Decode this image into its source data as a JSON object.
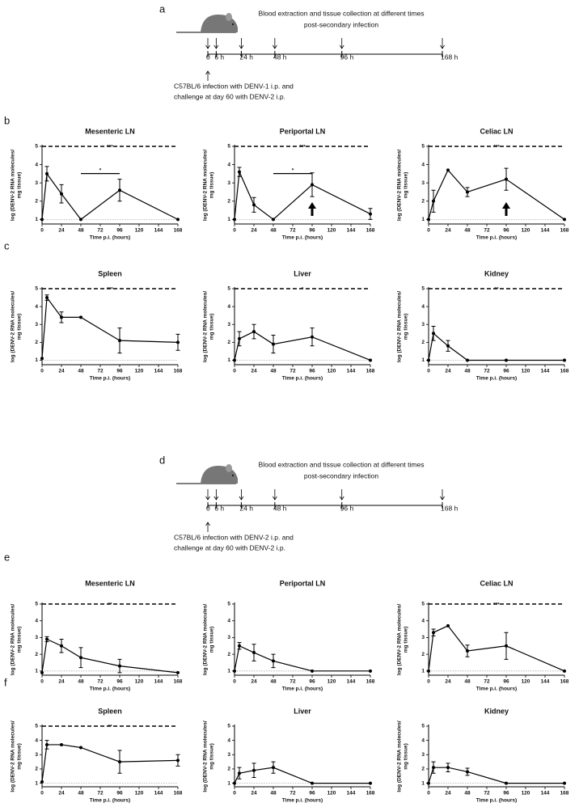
{
  "panels": [
    "a",
    "b",
    "c",
    "d",
    "e",
    "f"
  ],
  "timelines": [
    {
      "top_text": [
        "Blood extraction and tissue collection at different times",
        "post-secondary infection"
      ],
      "bottom_text": [
        "C57BL/6 infection with DENV-1 i.p. and",
        "challenge at day 60 with DENV-2 i.p."
      ],
      "ticks": [
        {
          "value": 0,
          "label": "0"
        },
        {
          "value": 6,
          "label": "6 h"
        },
        {
          "value": 24,
          "label": "24 h"
        },
        {
          "value": 48,
          "label": "48 h"
        },
        {
          "value": 96,
          "label": "96 h"
        },
        {
          "value": 168,
          "label": "168 h"
        }
      ]
    },
    {
      "top_text": [
        "Blood extraction and tissue collection at different times",
        "post-secondary infection"
      ],
      "bottom_text": [
        "C57BL/6 infection with DENV-2 i.p. and",
        "challenge at day 60 with DENV-2 i.p."
      ],
      "ticks": [
        {
          "value": 0,
          "label": "0"
        },
        {
          "value": 6,
          "label": "6 h"
        },
        {
          "value": 24,
          "label": "24 h"
        },
        {
          "value": 48,
          "label": "48 h"
        },
        {
          "value": 96,
          "label": "96 h"
        },
        {
          "value": 168,
          "label": "168 h"
        }
      ]
    }
  ],
  "chart_data": [
    {
      "type": "line",
      "title": "Mesenteric LN",
      "xlabel": "Time p.i. (hours)",
      "ylabel": [
        "log (DENV-2 RNA molecules/",
        "mg tissue)"
      ],
      "x": [
        0,
        6,
        24,
        48,
        96,
        168
      ],
      "values": [
        1,
        3.5,
        2.4,
        1,
        2.6,
        1
      ],
      "errors": [
        null,
        0.4,
        0.5,
        null,
        0.6,
        null
      ],
      "xlim": [
        0,
        168
      ],
      "xticks": [
        0,
        24,
        48,
        72,
        96,
        120,
        144,
        168
      ],
      "ylim": [
        0.75,
        5
      ],
      "yticks": [
        1,
        2,
        3,
        4,
        5
      ],
      "baseline": 1,
      "significance": "***",
      "bracket_x": [
        48,
        96
      ],
      "bracket_label": "*",
      "color": "#000000"
    },
    {
      "type": "line",
      "title": "Periportal LN",
      "xlabel": "Time p.i. (hours)",
      "ylabel": [
        "log (DENV-2 RNA molecules/",
        "mg tissue)"
      ],
      "x": [
        0,
        6,
        24,
        48,
        96,
        168
      ],
      "values": [
        1,
        3.6,
        1.8,
        1,
        2.9,
        1.3
      ],
      "errors": [
        null,
        0.25,
        0.4,
        null,
        0.65,
        0.3
      ],
      "xlim": [
        0,
        168
      ],
      "xticks": [
        0,
        24,
        48,
        72,
        96,
        120,
        144,
        168
      ],
      "ylim": [
        0.75,
        5
      ],
      "yticks": [
        1,
        2,
        3,
        4,
        5
      ],
      "baseline": 1,
      "significance": "***",
      "bracket_x": [
        48,
        96
      ],
      "bracket_label": "*",
      "arrow_x": 96,
      "color": "#000000"
    },
    {
      "type": "line",
      "title": "Celiac LN",
      "xlabel": "Time p.i. (hours)",
      "ylabel": [
        "log (DENV-2 RNA molecules/",
        "mg tissue)"
      ],
      "x": [
        0,
        6,
        24,
        48,
        96,
        168
      ],
      "values": [
        1,
        2,
        3.7,
        2.5,
        3.2,
        1
      ],
      "errors": [
        null,
        0.6,
        null,
        0.25,
        0.6,
        null
      ],
      "xlim": [
        0,
        168
      ],
      "xticks": [
        0,
        24,
        48,
        72,
        96,
        120,
        144,
        168
      ],
      "ylim": [
        0.75,
        5
      ],
      "yticks": [
        1,
        2,
        3,
        4,
        5
      ],
      "baseline": 1,
      "significance": "***",
      "arrow_x": 96,
      "color": "#000000"
    },
    {
      "type": "line",
      "title": "Spleen",
      "xlabel": "Time p.i. (hours)",
      "ylabel": [
        "log (DENV-2 RNA molecules/",
        "mg tissue)"
      ],
      "x": [
        0,
        6,
        24,
        48,
        96,
        168
      ],
      "values": [
        1.1,
        4.5,
        3.4,
        3.4,
        2.1,
        2
      ],
      "errors": [
        null,
        0.15,
        0.3,
        null,
        0.7,
        0.45
      ],
      "xlim": [
        0,
        168
      ],
      "xticks": [
        0,
        24,
        48,
        72,
        96,
        120,
        144,
        168
      ],
      "ylim": [
        0.75,
        5
      ],
      "yticks": [
        1,
        2,
        3,
        4,
        5
      ],
      "baseline": 1,
      "significance": "***",
      "color": "#000000"
    },
    {
      "type": "line",
      "title": "Liver",
      "xlabel": "Time p.i. (hours)",
      "ylabel": [
        "log (DENV-2 RNA molecules/",
        "mg tissue)"
      ],
      "x": [
        0,
        6,
        24,
        48,
        96,
        168
      ],
      "values": [
        1,
        2.2,
        2.6,
        1.9,
        2.3,
        1
      ],
      "errors": [
        null,
        0.4,
        0.4,
        0.5,
        0.5,
        null
      ],
      "xlim": [
        0,
        168
      ],
      "xticks": [
        0,
        24,
        48,
        72,
        96,
        120,
        144,
        168
      ],
      "ylim": [
        0.75,
        5
      ],
      "yticks": [
        1,
        2,
        3,
        4,
        5
      ],
      "baseline": 1,
      "significance": "*",
      "color": "#000000"
    },
    {
      "type": "line",
      "title": "Kidney",
      "xlabel": "Time p.i. (hours)",
      "ylabel": [
        "log (DENV-2 RNA molecules/",
        "mg tissue)"
      ],
      "x": [
        0,
        6,
        24,
        48,
        96,
        168
      ],
      "values": [
        1,
        2.5,
        1.8,
        1,
        1,
        1
      ],
      "errors": [
        null,
        0.4,
        0.3,
        null,
        null,
        null
      ],
      "xlim": [
        0,
        168
      ],
      "xticks": [
        0,
        24,
        48,
        72,
        96,
        120,
        144,
        168
      ],
      "ylim": [
        0.75,
        5
      ],
      "yticks": [
        1,
        2,
        3,
        4,
        5
      ],
      "baseline": 1,
      "significance": "**",
      "color": "#000000"
    },
    {
      "type": "line",
      "title": "Mesenteric LN",
      "xlabel": "Time p.i. (hours)",
      "ylabel": [
        "log (DENV-2 RNA molecules/",
        "mg tissue)"
      ],
      "x": [
        0,
        6,
        24,
        48,
        96,
        168
      ],
      "values": [
        0.9,
        2.9,
        2.5,
        1.8,
        1.3,
        0.9
      ],
      "errors": [
        null,
        0.15,
        0.4,
        0.6,
        0.4,
        null
      ],
      "xlim": [
        0,
        168
      ],
      "xticks": [
        0,
        24,
        48,
        72,
        96,
        120,
        144,
        168
      ],
      "ylim": [
        0.75,
        5
      ],
      "yticks": [
        1,
        2,
        3,
        4,
        5
      ],
      "baseline": 1,
      "significance": "**",
      "color": "#000000"
    },
    {
      "type": "line",
      "title": "Periportal LN",
      "xlabel": "Time p.i. (hours)",
      "ylabel": [
        "log (DENV-2 RNA molecules/",
        "mg tissue)"
      ],
      "x": [
        0,
        6,
        24,
        48,
        96,
        168
      ],
      "values": [
        1,
        2.5,
        2.1,
        1.6,
        1,
        1
      ],
      "errors": [
        null,
        0.2,
        0.5,
        0.4,
        null,
        null
      ],
      "xlim": [
        0,
        168
      ],
      "xticks": [
        0,
        24,
        48,
        72,
        96,
        120,
        144,
        168
      ],
      "ylim": [
        0.75,
        5
      ],
      "yticks": [
        1,
        2,
        3,
        4,
        5
      ],
      "baseline": 1,
      "color": "#000000"
    },
    {
      "type": "line",
      "title": "Celiac LN",
      "xlabel": "Time p.i. (hours)",
      "ylabel": [
        "log (DENV-2 RNA molecules/",
        "mg tissue)"
      ],
      "x": [
        0,
        6,
        24,
        48,
        96,
        168
      ],
      "values": [
        1,
        3.3,
        3.7,
        2.2,
        2.5,
        1
      ],
      "errors": [
        null,
        0.2,
        null,
        0.35,
        0.8,
        null
      ],
      "xlim": [
        0,
        168
      ],
      "xticks": [
        0,
        24,
        48,
        72,
        96,
        120,
        144,
        168
      ],
      "ylim": [
        0.75,
        5
      ],
      "yticks": [
        1,
        2,
        3,
        4,
        5
      ],
      "baseline": 1,
      "significance": "***",
      "color": "#000000"
    },
    {
      "type": "line",
      "title": "Spleen",
      "xlabel": "Time p.i. (hours)",
      "ylabel": [
        "log (DENV-2 RNA molecules/",
        "mg tissue)"
      ],
      "x": [
        0,
        6,
        24,
        48,
        96,
        168
      ],
      "values": [
        1.1,
        3.7,
        3.7,
        3.5,
        2.5,
        2.6
      ],
      "errors": [
        null,
        0.3,
        null,
        null,
        0.8,
        0.4
      ],
      "xlim": [
        0,
        168
      ],
      "xticks": [
        0,
        24,
        48,
        72,
        96,
        120,
        144,
        168
      ],
      "ylim": [
        0.75,
        5
      ],
      "yticks": [
        1,
        2,
        3,
        4,
        5
      ],
      "baseline": 1,
      "significance": "**",
      "color": "#000000"
    },
    {
      "type": "line",
      "title": "Liver",
      "xlabel": "Time p.i. (hours)",
      "ylabel": [
        "log (DENV-2 RNA molecules/",
        "mg tissue)"
      ],
      "x": [
        0,
        6,
        24,
        48,
        96,
        168
      ],
      "values": [
        1,
        1.7,
        1.9,
        2.1,
        1,
        1
      ],
      "errors": [
        null,
        0.4,
        0.5,
        0.4,
        null,
        null
      ],
      "xlim": [
        0,
        168
      ],
      "xticks": [
        0,
        24,
        48,
        72,
        96,
        120,
        144,
        168
      ],
      "ylim": [
        0.75,
        5
      ],
      "yticks": [
        1,
        2,
        3,
        4,
        5
      ],
      "baseline": 1,
      "color": "#000000"
    },
    {
      "type": "line",
      "title": "Kidney",
      "xlabel": "Time p.i. (hours)",
      "ylabel": [
        "log (DENV-2 RNA molecules/",
        "mg tissue)"
      ],
      "x": [
        0,
        6,
        24,
        48,
        96,
        168
      ],
      "values": [
        1,
        2.1,
        2.1,
        1.8,
        1,
        1
      ],
      "errors": [
        null,
        0.4,
        0.3,
        0.25,
        null,
        null
      ],
      "xlim": [
        0,
        168
      ],
      "xticks": [
        0,
        24,
        48,
        72,
        96,
        120,
        144,
        168
      ],
      "ylim": [
        0.75,
        5
      ],
      "yticks": [
        1,
        2,
        3,
        4,
        5
      ],
      "baseline": 1,
      "color": "#000000"
    }
  ]
}
